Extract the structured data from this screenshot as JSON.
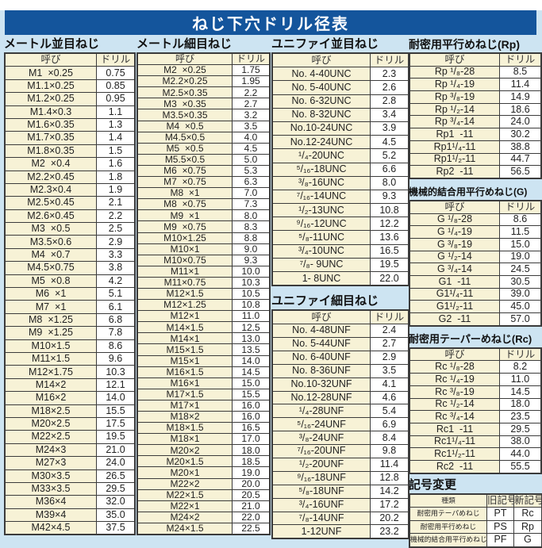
{
  "title": "ねじ下穴ドリル径表",
  "colors": {
    "banner_bg": "#14559c",
    "banner_text": "#ffffff",
    "page_bg": "#cde4f2",
    "cell_cream": "#f7f2d6",
    "border": "#3b3b3b"
  },
  "col_headers": {
    "name": "呼び",
    "drill": "ドリル"
  },
  "sections": {
    "metric_coarse": {
      "title": "メートル並目ねじ",
      "rows": [
        [
          "M1  ×0.25",
          "0.75"
        ],
        [
          "M1.1×0.25",
          "0.85"
        ],
        [
          "M1.2×0.25",
          "0.95"
        ],
        [
          "M1.4×0.3",
          "1.1"
        ],
        [
          "M1.6×0.35",
          "1.3"
        ],
        [
          "M1.7×0.35",
          "1.4"
        ],
        [
          "M1.8×0.35",
          "1.5"
        ],
        [
          "M2  ×0.4",
          "1.6"
        ],
        [
          "M2.2×0.45",
          "1.8"
        ],
        [
          "M2.3×0.4",
          "1.9"
        ],
        [
          "M2.5×0.45",
          "2.1"
        ],
        [
          "M2.6×0.45",
          "2.2"
        ],
        [
          "M3  ×0.5",
          "2.5"
        ],
        [
          "M3.5×0.6",
          "2.9"
        ],
        [
          "M4  ×0.7",
          "3.3"
        ],
        [
          "M4.5×0.75",
          "3.8"
        ],
        [
          "M5  ×0.8",
          "4.2"
        ],
        [
          "M6  ×1",
          "5.1"
        ],
        [
          "M7  ×1",
          "6.1"
        ],
        [
          "M8  ×1.25",
          "6.8"
        ],
        [
          "M9  ×1.25",
          "7.8"
        ],
        [
          "M10×1.5",
          "8.6"
        ],
        [
          "M11×1.5",
          "9.6"
        ],
        [
          "M12×1.75",
          "10.3"
        ],
        [
          "M14×2",
          "12.1"
        ],
        [
          "M16×2",
          "14.0"
        ],
        [
          "M18×2.5",
          "15.5"
        ],
        [
          "M20×2.5",
          "17.5"
        ],
        [
          "M22×2.5",
          "19.5"
        ],
        [
          "M24×3",
          "21.0"
        ],
        [
          "M27×3",
          "24.0"
        ],
        [
          "M30×3.5",
          "26.5"
        ],
        [
          "M33×3.5",
          "29.5"
        ],
        [
          "M36×4",
          "32.0"
        ],
        [
          "M39×4",
          "35.0"
        ],
        [
          "M42×4.5",
          "37.5"
        ]
      ]
    },
    "metric_fine": {
      "title": "メートル細目ねじ",
      "rows": [
        [
          "M2  ×0.25",
          "1.75"
        ],
        [
          "M2.2×0.25",
          "1.95"
        ],
        [
          "M2.5×0.35",
          "2.2"
        ],
        [
          "M3  ×0.35",
          "2.7"
        ],
        [
          "M3.5×0.35",
          "3.2"
        ],
        [
          "M4  ×0.5",
          "3.5"
        ],
        [
          "M4.5×0.5",
          "4.0"
        ],
        [
          "M5  ×0.5",
          "4.5"
        ],
        [
          "M5.5×0.5",
          "5.0"
        ],
        [
          "M6  ×0.75",
          "5.3"
        ],
        [
          "M7  ×0.75",
          "6.3"
        ],
        [
          "M8  ×1",
          "7.0"
        ],
        [
          "M8  ×0.75",
          "7.3"
        ],
        [
          "M9  ×1",
          "8.0"
        ],
        [
          "M9  ×0.75",
          "8.3"
        ],
        [
          "M10×1.25",
          "8.8"
        ],
        [
          "M10×1",
          "9.0"
        ],
        [
          "M10×0.75",
          "9.3"
        ],
        [
          "M11×1",
          "10.0"
        ],
        [
          "M11×0.75",
          "10.3"
        ],
        [
          "M12×1.5",
          "10.5"
        ],
        [
          "M12×1.25",
          "10.8"
        ],
        [
          "M12×1",
          "11.0"
        ],
        [
          "M14×1.5",
          "12.5"
        ],
        [
          "M14×1",
          "13.0"
        ],
        [
          "M15×1.5",
          "13.5"
        ],
        [
          "M15×1",
          "14.0"
        ],
        [
          "M16×1.5",
          "14.5"
        ],
        [
          "M16×1",
          "15.0"
        ],
        [
          "M17×1.5",
          "15.5"
        ],
        [
          "M17×1",
          "16.0"
        ],
        [
          "M18×2",
          "16.0"
        ],
        [
          "M18×1.5",
          "16.5"
        ],
        [
          "M18×1",
          "17.0"
        ],
        [
          "M20×2",
          "18.0"
        ],
        [
          "M20×1.5",
          "18.5"
        ],
        [
          "M20×1",
          "19.0"
        ],
        [
          "M22×2",
          "20.0"
        ],
        [
          "M22×1.5",
          "20.5"
        ],
        [
          "M22×1",
          "21.0"
        ],
        [
          "M24×2",
          "22.0"
        ],
        [
          "M24×1.5",
          "22.5"
        ]
      ]
    },
    "unified_coarse": {
      "title": "ユニファイ並目ねじ",
      "rows": [
        [
          "No. 4-40UNC",
          "2.3"
        ],
        [
          "No. 5-40UNC",
          "2.6"
        ],
        [
          "No. 6-32UNC",
          "2.8"
        ],
        [
          "No. 8-32UNC",
          "3.4"
        ],
        [
          "No.10-24UNC",
          "3.9"
        ],
        [
          "No.12-24UNC",
          "4.5"
        ],
        [
          "¹/₄-20UNC",
          "5.2"
        ],
        [
          "⁵/₁₆-18UNC",
          "6.6"
        ],
        [
          "³/₈-16UNC",
          "8.0"
        ],
        [
          "⁷/₁₆-14UNC",
          "9.3"
        ],
        [
          "¹/₂-13UNC",
          "10.8"
        ],
        [
          "⁹/₁₆-12UNC",
          "12.2"
        ],
        [
          "⁵/₈-11UNC",
          "13.6"
        ],
        [
          "³/₄-10UNC",
          "16.5"
        ],
        [
          "⁷/₈- 9UNC",
          "19.5"
        ],
        [
          "1- 8UNC",
          "22.0"
        ]
      ]
    },
    "unified_fine": {
      "title": "ユニファイ細目ねじ",
      "rows": [
        [
          "No. 4-48UNF",
          "2.4"
        ],
        [
          "No. 5-44UNF",
          "2.7"
        ],
        [
          "No. 6-40UNF",
          "2.9"
        ],
        [
          "No. 8-36UNF",
          "3.5"
        ],
        [
          "No.10-32UNF",
          "4.1"
        ],
        [
          "No.12-28UNF",
          "4.6"
        ],
        [
          "¹/₄-28UNF",
          "5.4"
        ],
        [
          "⁵/₁₆-24UNF",
          "6.9"
        ],
        [
          "³/₈-24UNF",
          "8.4"
        ],
        [
          "⁷/₁₆-20UNF",
          "9.8"
        ],
        [
          "¹/₂-20UNF",
          "11.4"
        ],
        [
          "⁹/₁₆-18UNF",
          "12.8"
        ],
        [
          "⁵/₈-18UNF",
          "14.2"
        ],
        [
          "³/₄-16UNF",
          "17.2"
        ],
        [
          "⁷/₈-14UNF",
          "20.2"
        ],
        [
          "1-12UNF",
          "23.2"
        ]
      ]
    },
    "rp": {
      "title": "耐密用平行めねじ(Rp)",
      "rows": [
        [
          "Rp ¹/₈-28",
          "8.5"
        ],
        [
          "Rp ¹/₄-19",
          "11.4"
        ],
        [
          "Rp ³/₈-19",
          "14.9"
        ],
        [
          "Rp ¹/₂-14",
          "18.6"
        ],
        [
          "Rp ³/₄-14",
          "24.0"
        ],
        [
          "Rp1  -11",
          "30.2"
        ],
        [
          "Rp1¹/₄-11",
          "38.8"
        ],
        [
          "Rp1¹/₂-11",
          "44.7"
        ],
        [
          "Rp2  -11",
          "56.5"
        ]
      ]
    },
    "g": {
      "title": "機械的結合用平行めねじ(G)",
      "rows": [
        [
          "G ¹/₈-28",
          "8.6"
        ],
        [
          "G ¹/₄-19",
          "11.5"
        ],
        [
          "G ³/₈-19",
          "15.0"
        ],
        [
          "G ¹/₂-14",
          "19.0"
        ],
        [
          "G ³/₄-14",
          "24.5"
        ],
        [
          "G1  -11",
          "30.5"
        ],
        [
          "G1¹/₄-11",
          "39.0"
        ],
        [
          "G1¹/₂-11",
          "45.0"
        ],
        [
          "G2  -11",
          "57.0"
        ]
      ]
    },
    "rc": {
      "title": "耐密用テーパーめねじ(Rc)",
      "rows": [
        [
          "Rc ¹/₈-28",
          "8.2"
        ],
        [
          "Rc ¹/₄-19",
          "11.0"
        ],
        [
          "Rc ³/₈-19",
          "14.5"
        ],
        [
          "Rc ¹/₂-14",
          "18.0"
        ],
        [
          "Rc ³/₄-14",
          "23.5"
        ],
        [
          "Rc1  -11",
          "29.5"
        ],
        [
          "Rc1¹/₄-11",
          "38.0"
        ],
        [
          "Rc1¹/₂-11",
          "44.0"
        ],
        [
          "Rc2  -11",
          "55.5"
        ]
      ]
    },
    "symbol_change": {
      "title": "記号変更",
      "headers": [
        "種類",
        "旧記号",
        "新記号"
      ],
      "rows": [
        [
          "耐密用テーパめねじ",
          "PT",
          "Rc"
        ],
        [
          "耐密用平行めねじ",
          "PS",
          "Rp"
        ],
        [
          "機械的結合用平行めねじ",
          "PF",
          "G"
        ]
      ]
    }
  }
}
